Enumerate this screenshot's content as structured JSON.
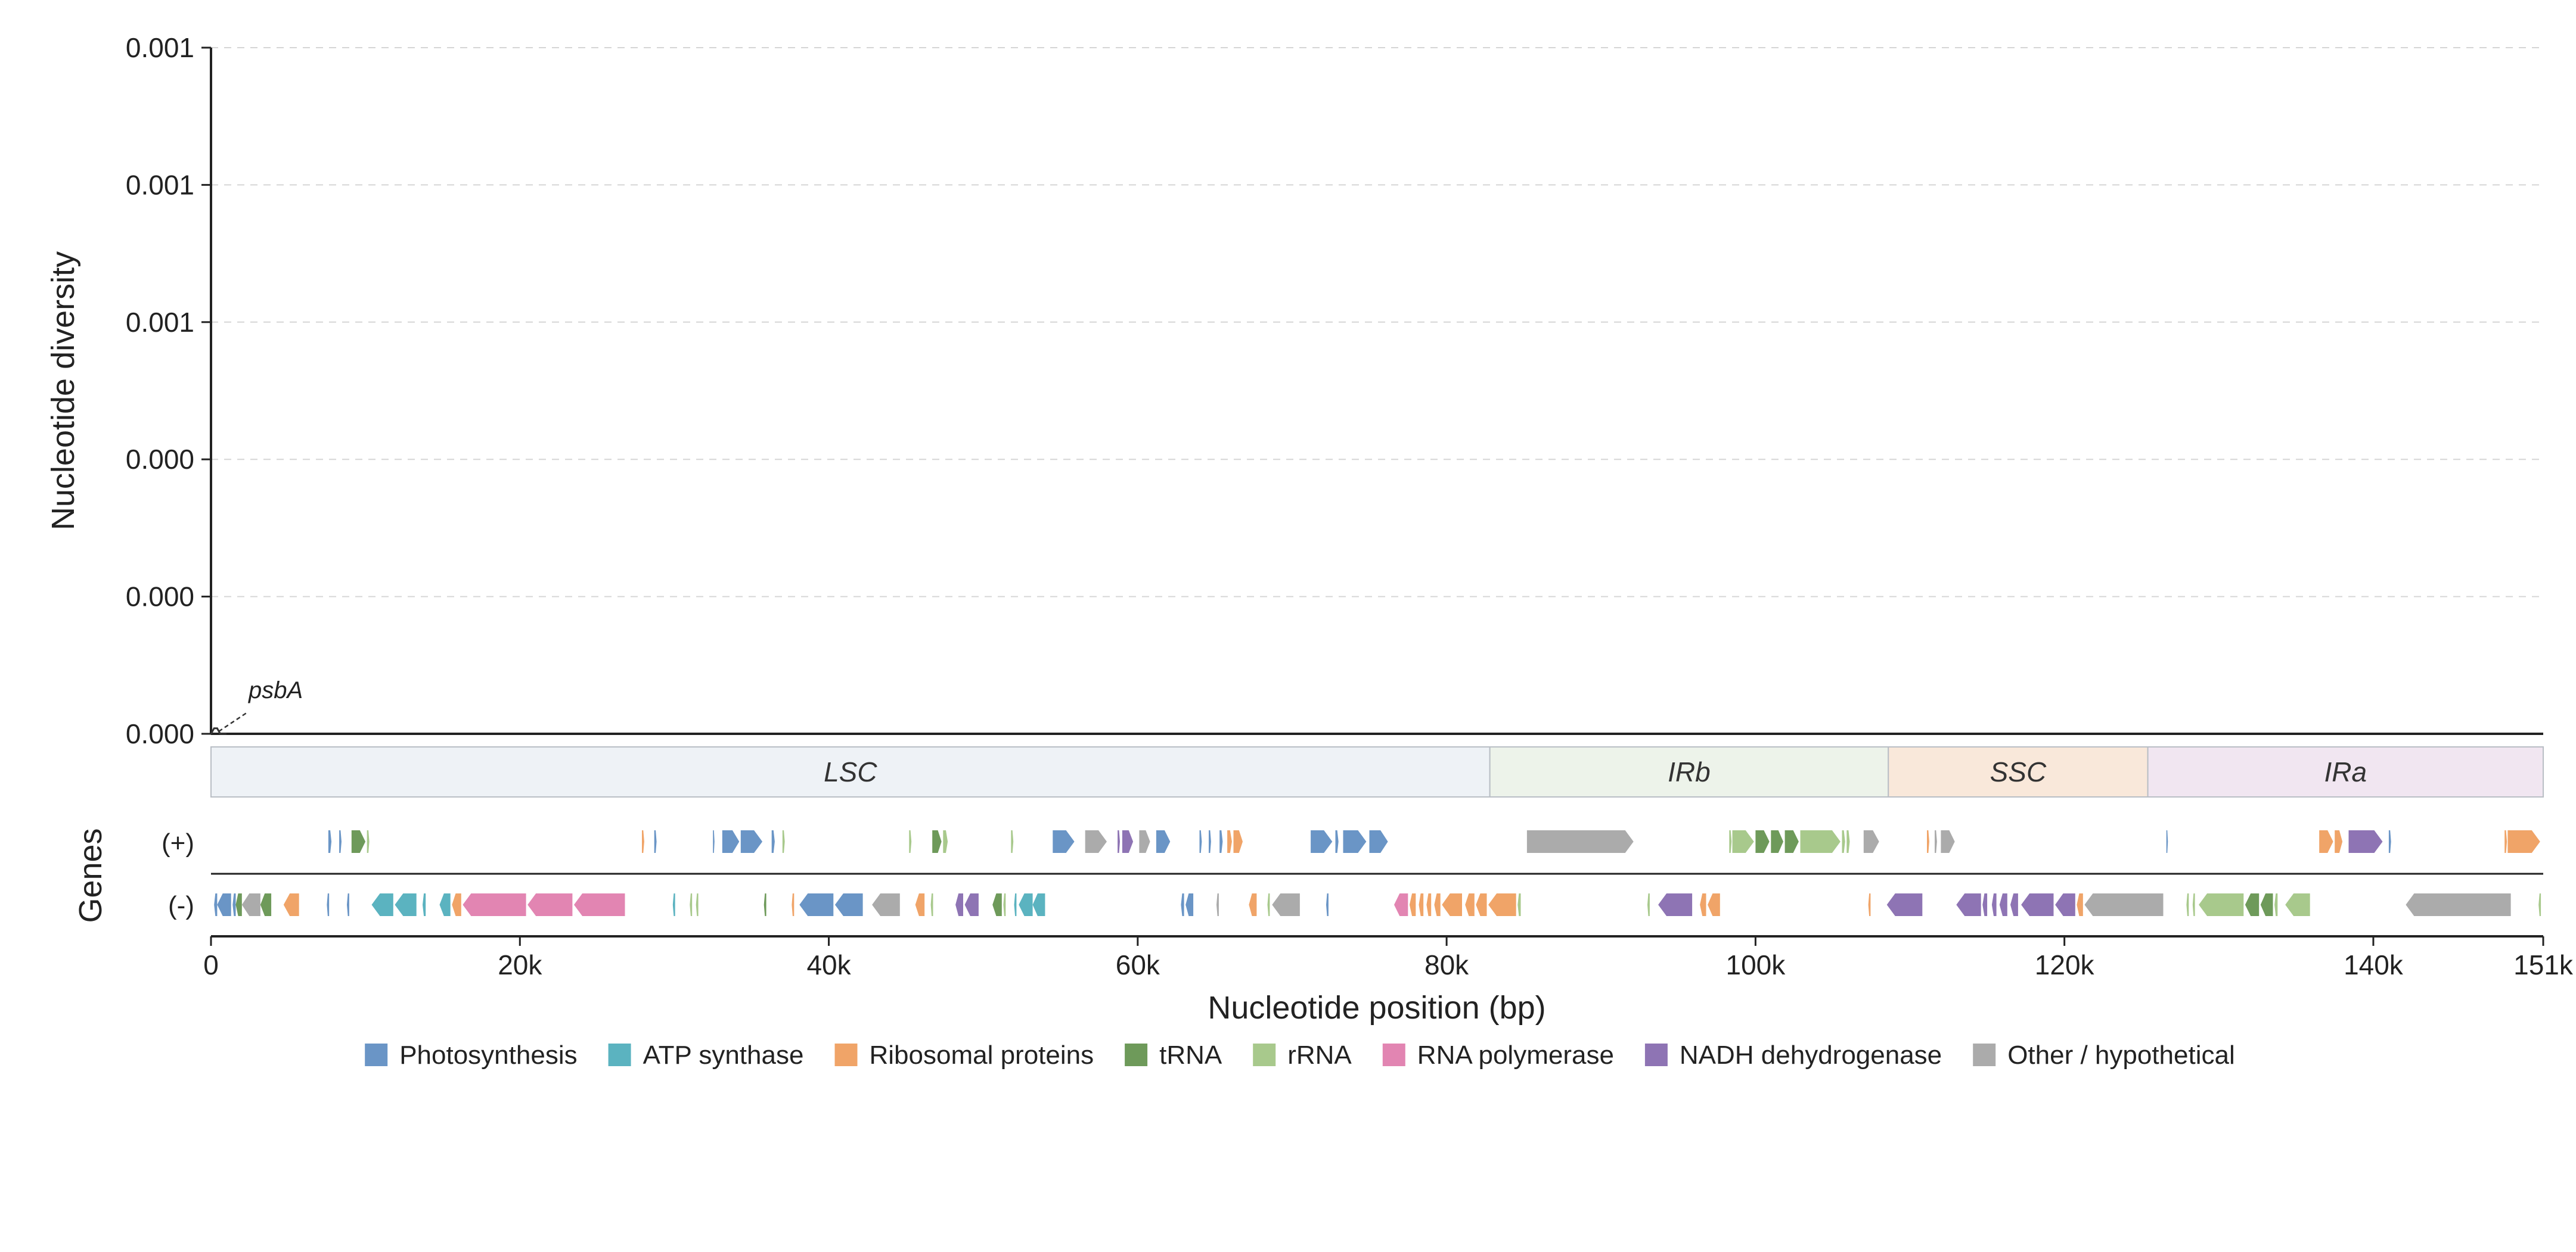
{
  "chart_data": {
    "type": "line",
    "ylabel": "Nucleotide diversity",
    "xlabel": "Nucleotide position (bp)",
    "genes_label": "Genes",
    "strand_labels": {
      "plus": "(+)",
      "minus": "(-)"
    },
    "xlim": [
      0,
      151000
    ],
    "ylim": [
      0,
      0.00125
    ],
    "y_ticks": [
      {
        "value": 0,
        "label": "0.000"
      },
      {
        "value": 0.00025,
        "label": "0.000"
      },
      {
        "value": 0.0005,
        "label": "0.000"
      },
      {
        "value": 0.00075,
        "label": "0.001"
      },
      {
        "value": 0.001,
        "label": "0.001"
      },
      {
        "value": 0.00125,
        "label": "0.001"
      }
    ],
    "x_ticks": [
      {
        "value": 0,
        "label": "0"
      },
      {
        "value": 20000,
        "label": "20k"
      },
      {
        "value": 40000,
        "label": "40k"
      },
      {
        "value": 60000,
        "label": "60k"
      },
      {
        "value": 80000,
        "label": "80k"
      },
      {
        "value": 100000,
        "label": "100k"
      },
      {
        "value": 120000,
        "label": "120k"
      },
      {
        "value": 140000,
        "label": "140k"
      },
      {
        "value": 151000,
        "label": "151k"
      }
    ],
    "grid": "horizontal dashed",
    "series": [
      {
        "x": [
          0,
          200,
          400,
          600,
          800,
          1000
        ],
        "y": [
          0,
          1e-05,
          1e-05,
          0,
          0,
          0
        ]
      }
    ],
    "annotations": [
      {
        "text": "psbA",
        "x": 500,
        "y": 0
      }
    ],
    "regions": [
      {
        "label": "LSC",
        "start": 0,
        "end": 82800,
        "color": "#eef2f6"
      },
      {
        "label": "IRb",
        "start": 82800,
        "end": 108600,
        "color": "#edf3ea"
      },
      {
        "label": "SSC",
        "start": 108600,
        "end": 125400,
        "color": "#f9e8da"
      },
      {
        "label": "IRa",
        "start": 125400,
        "end": 151000,
        "color": "#f1e6f1"
      }
    ],
    "categories": {
      "photo": {
        "label": "Photosynthesis",
        "color": "#6a95c6"
      },
      "atp": {
        "label": "ATP synthase",
        "color": "#5bb3c0"
      },
      "ribo": {
        "label": "Ribosomal proteins",
        "color": "#f0a468"
      },
      "trna": {
        "label": "tRNA",
        "color": "#6e9a5a"
      },
      "rrna": {
        "label": "rRNA",
        "color": "#a8c98c"
      },
      "rnap": {
        "label": "RNA polymerase",
        "color": "#e285b2"
      },
      "ndh": {
        "label": "NADH dehydrogenase",
        "color": "#8e74b4"
      },
      "other": {
        "label": "Other / hypothetical",
        "color": "#ababab"
      }
    },
    "legend_order": [
      "photo",
      "atp",
      "ribo",
      "trna",
      "rrna",
      "rnap",
      "ndh",
      "other"
    ],
    "genes_plus": [
      {
        "start": 7600,
        "end": 7800,
        "cat": "photo"
      },
      {
        "start": 8300,
        "end": 8450,
        "cat": "photo"
      },
      {
        "start": 9100,
        "end": 10000,
        "cat": "trna"
      },
      {
        "start": 10100,
        "end": 10250,
        "cat": "rrna"
      },
      {
        "start": 27900,
        "end": 28050,
        "cat": "ribo"
      },
      {
        "start": 28700,
        "end": 28850,
        "cat": "photo"
      },
      {
        "start": 32500,
        "end": 32600,
        "cat": "photo"
      },
      {
        "start": 33100,
        "end": 34200,
        "cat": "photo"
      },
      {
        "start": 34300,
        "end": 35700,
        "cat": "photo"
      },
      {
        "start": 36300,
        "end": 36500,
        "cat": "photo"
      },
      {
        "start": 37000,
        "end": 37150,
        "cat": "rrna"
      },
      {
        "start": 45200,
        "end": 45350,
        "cat": "rrna"
      },
      {
        "start": 46700,
        "end": 47300,
        "cat": "trna"
      },
      {
        "start": 47400,
        "end": 47700,
        "cat": "rrna"
      },
      {
        "start": 51800,
        "end": 51950,
        "cat": "rrna"
      },
      {
        "start": 54500,
        "end": 55900,
        "cat": "photo"
      },
      {
        "start": 56600,
        "end": 58000,
        "cat": "other"
      },
      {
        "start": 58700,
        "end": 58850,
        "cat": "ndh"
      },
      {
        "start": 59000,
        "end": 59700,
        "cat": "ndh"
      },
      {
        "start": 60100,
        "end": 60800,
        "cat": "other"
      },
      {
        "start": 61200,
        "end": 62100,
        "cat": "photo"
      },
      {
        "start": 64000,
        "end": 64150,
        "cat": "photo"
      },
      {
        "start": 64600,
        "end": 64750,
        "cat": "photo"
      },
      {
        "start": 65300,
        "end": 65500,
        "cat": "photo"
      },
      {
        "start": 65800,
        "end": 66100,
        "cat": "ribo"
      },
      {
        "start": 66200,
        "end": 66800,
        "cat": "ribo"
      },
      {
        "start": 71200,
        "end": 72600,
        "cat": "photo"
      },
      {
        "start": 72800,
        "end": 73000,
        "cat": "photo"
      },
      {
        "start": 73300,
        "end": 74800,
        "cat": "photo"
      },
      {
        "start": 75000,
        "end": 76200,
        "cat": "photo"
      },
      {
        "start": 85200,
        "end": 92100,
        "cat": "other"
      },
      {
        "start": 98300,
        "end": 98450,
        "cat": "rrna"
      },
      {
        "start": 98500,
        "end": 99900,
        "cat": "rrna"
      },
      {
        "start": 100000,
        "end": 100900,
        "cat": "trna"
      },
      {
        "start": 101000,
        "end": 101800,
        "cat": "trna"
      },
      {
        "start": 101900,
        "end": 102800,
        "cat": "trna"
      },
      {
        "start": 102900,
        "end": 105500,
        "cat": "rrna"
      },
      {
        "start": 105600,
        "end": 105800,
        "cat": "rrna"
      },
      {
        "start": 105900,
        "end": 106100,
        "cat": "rrna"
      },
      {
        "start": 107000,
        "end": 108000,
        "cat": "other"
      },
      {
        "start": 111100,
        "end": 111250,
        "cat": "ribo"
      },
      {
        "start": 111600,
        "end": 111750,
        "cat": "other"
      },
      {
        "start": 112000,
        "end": 112900,
        "cat": "other"
      },
      {
        "start": 126600,
        "end": 126700,
        "cat": "photo"
      },
      {
        "start": 136500,
        "end": 137400,
        "cat": "ribo"
      },
      {
        "start": 137500,
        "end": 138000,
        "cat": "ribo"
      },
      {
        "start": 138400,
        "end": 140600,
        "cat": "ndh"
      },
      {
        "start": 141000,
        "end": 141150,
        "cat": "photo"
      },
      {
        "start": 148500,
        "end": 148650,
        "cat": "ribo"
      },
      {
        "start": 148700,
        "end": 150800,
        "cat": "ribo"
      }
    ],
    "genes_minus": [
      {
        "start": 200,
        "end": 400,
        "cat": "photo"
      },
      {
        "start": 400,
        "end": 1300,
        "cat": "photo"
      },
      {
        "start": 1400,
        "end": 1600,
        "cat": "photo"
      },
      {
        "start": 1600,
        "end": 2000,
        "cat": "trna"
      },
      {
        "start": 2000,
        "end": 3200,
        "cat": "other"
      },
      {
        "start": 3200,
        "end": 3900,
        "cat": "trna"
      },
      {
        "start": 4700,
        "end": 5700,
        "cat": "ribo"
      },
      {
        "start": 7500,
        "end": 7650,
        "cat": "photo"
      },
      {
        "start": 8800,
        "end": 8950,
        "cat": "photo"
      },
      {
        "start": 10400,
        "end": 11800,
        "cat": "atp"
      },
      {
        "start": 11900,
        "end": 13300,
        "cat": "atp"
      },
      {
        "start": 13700,
        "end": 13900,
        "cat": "atp"
      },
      {
        "start": 14800,
        "end": 15500,
        "cat": "atp"
      },
      {
        "start": 15600,
        "end": 16200,
        "cat": "ribo"
      },
      {
        "start": 16300,
        "end": 20400,
        "cat": "rnap"
      },
      {
        "start": 20500,
        "end": 23400,
        "cat": "rnap"
      },
      {
        "start": 23500,
        "end": 26800,
        "cat": "rnap"
      },
      {
        "start": 29900,
        "end": 30050,
        "cat": "atp"
      },
      {
        "start": 31000,
        "end": 31150,
        "cat": "rrna"
      },
      {
        "start": 31400,
        "end": 31550,
        "cat": "rrna"
      },
      {
        "start": 35800,
        "end": 35950,
        "cat": "trna"
      },
      {
        "start": 37600,
        "end": 37750,
        "cat": "ribo"
      },
      {
        "start": 38100,
        "end": 40300,
        "cat": "photo"
      },
      {
        "start": 40400,
        "end": 42200,
        "cat": "photo"
      },
      {
        "start": 42800,
        "end": 44600,
        "cat": "other"
      },
      {
        "start": 45600,
        "end": 46200,
        "cat": "ribo"
      },
      {
        "start": 46600,
        "end": 46750,
        "cat": "rrna"
      },
      {
        "start": 48200,
        "end": 48700,
        "cat": "ndh"
      },
      {
        "start": 48800,
        "end": 49700,
        "cat": "ndh"
      },
      {
        "start": 50600,
        "end": 51200,
        "cat": "trna"
      },
      {
        "start": 51300,
        "end": 51450,
        "cat": "rrna"
      },
      {
        "start": 52000,
        "end": 52150,
        "cat": "atp"
      },
      {
        "start": 52300,
        "end": 53200,
        "cat": "atp"
      },
      {
        "start": 53200,
        "end": 54000,
        "cat": "atp"
      },
      {
        "start": 62800,
        "end": 63000,
        "cat": "photo"
      },
      {
        "start": 63100,
        "end": 63600,
        "cat": "photo"
      },
      {
        "start": 65100,
        "end": 65250,
        "cat": "other"
      },
      {
        "start": 67200,
        "end": 67700,
        "cat": "ribo"
      },
      {
        "start": 68400,
        "end": 68550,
        "cat": "rrna"
      },
      {
        "start": 68700,
        "end": 70500,
        "cat": "other"
      },
      {
        "start": 72200,
        "end": 72350,
        "cat": "photo"
      },
      {
        "start": 76600,
        "end": 77500,
        "cat": "rnap"
      },
      {
        "start": 77600,
        "end": 78000,
        "cat": "ribo"
      },
      {
        "start": 78200,
        "end": 78500,
        "cat": "ribo"
      },
      {
        "start": 78700,
        "end": 79000,
        "cat": "ribo"
      },
      {
        "start": 79200,
        "end": 79600,
        "cat": "ribo"
      },
      {
        "start": 79700,
        "end": 81000,
        "cat": "ribo"
      },
      {
        "start": 81200,
        "end": 81800,
        "cat": "ribo"
      },
      {
        "start": 81900,
        "end": 82600,
        "cat": "ribo"
      },
      {
        "start": 82700,
        "end": 84500,
        "cat": "ribo"
      },
      {
        "start": 84600,
        "end": 84800,
        "cat": "rrna"
      },
      {
        "start": 93000,
        "end": 93150,
        "cat": "rrna"
      },
      {
        "start": 93700,
        "end": 95900,
        "cat": "ndh"
      },
      {
        "start": 96400,
        "end": 96800,
        "cat": "ribo"
      },
      {
        "start": 96900,
        "end": 97700,
        "cat": "ribo"
      },
      {
        "start": 107300,
        "end": 107450,
        "cat": "ribo"
      },
      {
        "start": 108500,
        "end": 110800,
        "cat": "ndh"
      },
      {
        "start": 113000,
        "end": 114600,
        "cat": "ndh"
      },
      {
        "start": 114700,
        "end": 115000,
        "cat": "ndh"
      },
      {
        "start": 115300,
        "end": 115600,
        "cat": "ndh"
      },
      {
        "start": 115800,
        "end": 116300,
        "cat": "ndh"
      },
      {
        "start": 116500,
        "end": 117000,
        "cat": "ndh"
      },
      {
        "start": 117200,
        "end": 119300,
        "cat": "ndh"
      },
      {
        "start": 119400,
        "end": 120700,
        "cat": "ndh"
      },
      {
        "start": 120800,
        "end": 121200,
        "cat": "ribo"
      },
      {
        "start": 121300,
        "end": 126400,
        "cat": "other"
      },
      {
        "start": 127900,
        "end": 128050,
        "cat": "rrna"
      },
      {
        "start": 128300,
        "end": 128450,
        "cat": "rrna"
      },
      {
        "start": 128700,
        "end": 131600,
        "cat": "rrna"
      },
      {
        "start": 131700,
        "end": 132600,
        "cat": "trna"
      },
      {
        "start": 132700,
        "end": 133500,
        "cat": "trna"
      },
      {
        "start": 133600,
        "end": 133800,
        "cat": "rrna"
      },
      {
        "start": 134300,
        "end": 135900,
        "cat": "rrna"
      },
      {
        "start": 142100,
        "end": 148900,
        "cat": "other"
      },
      {
        "start": 150700,
        "end": 150850,
        "cat": "rrna"
      }
    ]
  }
}
